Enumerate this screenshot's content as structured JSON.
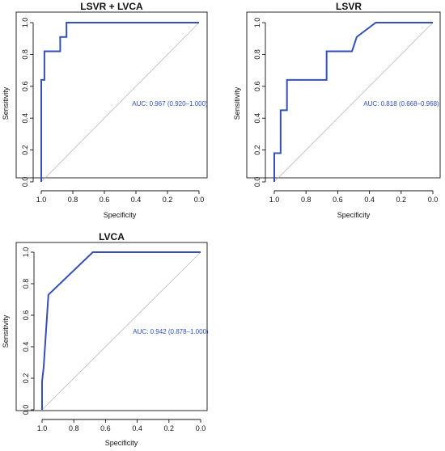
{
  "colors": {
    "curve": "#3450b8",
    "diagonal": "#b8b8b8",
    "auc_text": "#2b4fc4"
  },
  "chart_data": [
    {
      "type": "line",
      "title": "LSVR + LVCA",
      "xlabel": "Specificity",
      "ylabel": "Sensitivity",
      "xlim": [
        1.0,
        0.0
      ],
      "ylim": [
        0.0,
        1.0
      ],
      "x_reversed": true,
      "x_ticks": [
        "1.0",
        "0.8",
        "0.6",
        "0.4",
        "0.2",
        "0.0"
      ],
      "y_ticks": [
        "0.0",
        "0.2",
        "0.4",
        "0.6",
        "0.8",
        "1.0"
      ],
      "annotation": "AUC: 0.967 (0.920–1.000)",
      "grid": false,
      "reference_line": "diagonal",
      "series": [
        {
          "specificity": [
            1.0,
            1.0,
            0.99,
            0.99,
            0.98,
            0.98,
            0.96,
            0.96,
            0.88,
            0.88,
            0.86,
            0.86,
            0.84,
            0.84,
            0.0
          ],
          "sensitivity": [
            0.0,
            0.64,
            0.64,
            0.64,
            0.64,
            0.82,
            0.82,
            0.82,
            0.82,
            0.91,
            0.91,
            0.91,
            0.91,
            1.0,
            1.0
          ]
        }
      ]
    },
    {
      "type": "line",
      "title": "LSVR",
      "xlabel": "Specificity",
      "ylabel": "Sensitivity",
      "xlim": [
        1.0,
        0.0
      ],
      "ylim": [
        0.0,
        1.0
      ],
      "x_reversed": true,
      "x_ticks": [
        "1.0",
        "0.8",
        "0.6",
        "0.4",
        "0.2",
        "0.0"
      ],
      "y_ticks": [
        "0.0",
        "0.2",
        "0.4",
        "0.6",
        "0.8",
        "1.0"
      ],
      "annotation": "AUC: 0.818 (0.668–0.968)",
      "grid": false,
      "reference_line": "diagonal",
      "series": [
        {
          "specificity": [
            1.0,
            1.0,
            0.96,
            0.96,
            0.94,
            0.94,
            0.92,
            0.92,
            0.67,
            0.67,
            0.51,
            0.48,
            0.36,
            0.0
          ],
          "sensitivity": [
            0.0,
            0.18,
            0.18,
            0.45,
            0.45,
            0.45,
            0.45,
            0.64,
            0.64,
            0.82,
            0.82,
            0.91,
            1.0,
            1.0
          ]
        }
      ]
    },
    {
      "type": "line",
      "title": "LVCA",
      "xlabel": "Specificity",
      "ylabel": "Sensitivity",
      "xlim": [
        1.0,
        0.0
      ],
      "ylim": [
        0.0,
        1.0
      ],
      "x_reversed": true,
      "x_ticks": [
        "1.0",
        "0.8",
        "0.6",
        "0.4",
        "0.2",
        "0.0"
      ],
      "y_ticks": [
        "0.0",
        "0.2",
        "0.4",
        "0.6",
        "0.8",
        "1.0"
      ],
      "annotation": "AUC: 0.942 (0.878–1.000)",
      "grid": false,
      "reference_line": "diagonal",
      "series": [
        {
          "specificity": [
            1.0,
            1.0,
            0.99,
            0.96,
            0.68,
            0.0
          ],
          "sensitivity": [
            0.0,
            0.18,
            0.27,
            0.73,
            1.0,
            1.0
          ]
        }
      ]
    }
  ]
}
